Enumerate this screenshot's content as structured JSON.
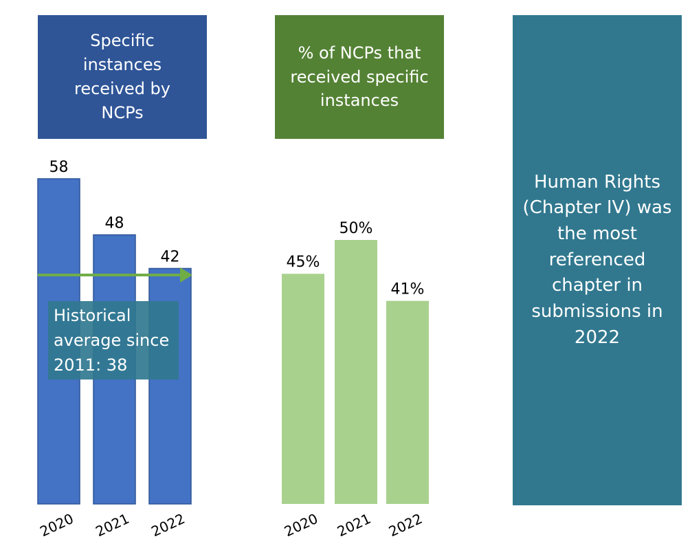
{
  "chart_data": [
    {
      "type": "bar",
      "title": "Specific instances received by NCPs",
      "categories": [
        "2020",
        "2021",
        "2022"
      ],
      "values": [
        58,
        48,
        42
      ],
      "color": "#4472c4",
      "ylim": [
        0,
        58
      ],
      "annotation": "Historical average since 2011: 38"
    },
    {
      "type": "bar",
      "title": "% of NCPs that received specific instances",
      "categories": [
        "2020",
        "2021",
        "2022"
      ],
      "values": [
        45,
        50,
        41
      ],
      "value_labels": [
        "45%",
        "50%",
        "41%"
      ],
      "color": "#a9d18e",
      "ylim": [
        11,
        50
      ]
    }
  ],
  "panel": {
    "text": "Human Rights (Chapter IV) was the most referenced chapter in submissions in 2022"
  }
}
